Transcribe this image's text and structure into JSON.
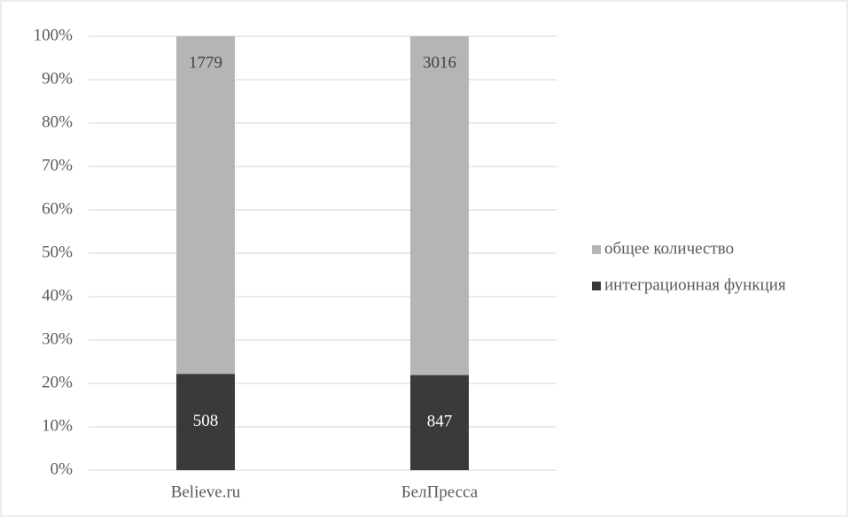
{
  "chart_data": {
    "type": "bar",
    "stacking": "percent",
    "categories": [
      "Believe.ru",
      "БелПресса"
    ],
    "series": [
      {
        "name": "интеграционная функция",
        "color": "#3a3a3a",
        "values": [
          508,
          847
        ]
      },
      {
        "name": "общее количество",
        "color": "#b5b5b5",
        "values": [
          1779,
          3016
        ]
      }
    ],
    "ylim": [
      0,
      100
    ],
    "yticks": [
      {
        "value": 0,
        "label": "0%"
      },
      {
        "value": 10,
        "label": "10%"
      },
      {
        "value": 20,
        "label": "20%"
      },
      {
        "value": 30,
        "label": "30%"
      },
      {
        "value": 40,
        "label": "40%"
      },
      {
        "value": 50,
        "label": "50%"
      },
      {
        "value": 60,
        "label": "60%"
      },
      {
        "value": 70,
        "label": "70%"
      },
      {
        "value": 80,
        "label": "80%"
      },
      {
        "value": 90,
        "label": "90%"
      },
      {
        "value": 100,
        "label": "100%"
      }
    ],
    "grid": true,
    "legend": "right"
  }
}
